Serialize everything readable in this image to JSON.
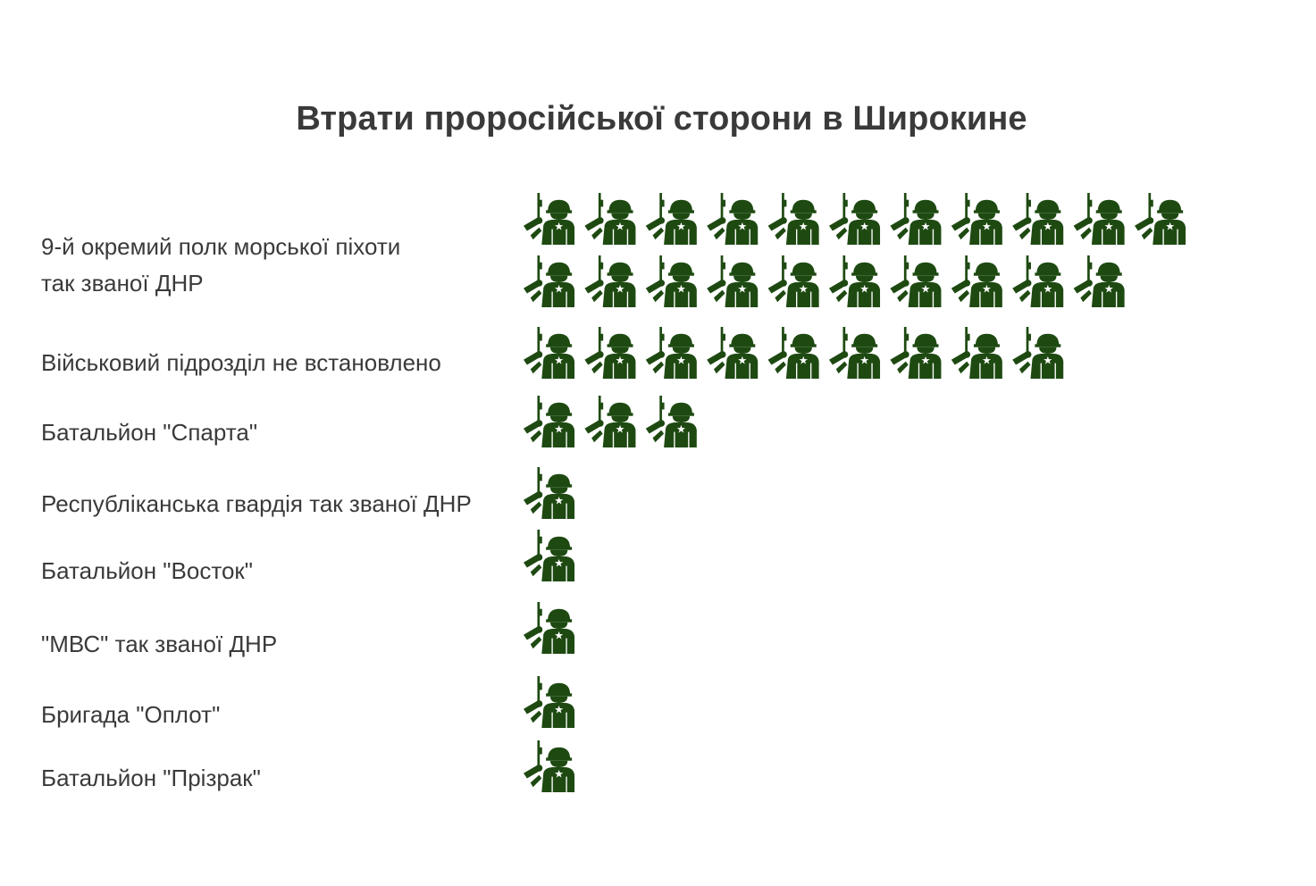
{
  "chart_data": {
    "type": "bar",
    "style": "pictogram",
    "icon": "soldier-icon",
    "icon_color": "#1e4a12",
    "text_color": "#3a3a3a",
    "background": "#ffffff",
    "title": "Втрати проросійської сторони в Широкине",
    "grid": false,
    "legend": "none",
    "categories": [
      [
        "9-й окремий полк морської піхоти",
        "так званої ДНР"
      ],
      [
        "Військовий підрозділ не встановлено"
      ],
      [
        "Батальйон \"Спарта\""
      ],
      [
        "Республіканська гвардія так званої ДНР"
      ],
      [
        "Батальйон \"Восток\""
      ],
      [
        "\"МВС\" так званої ДНР"
      ],
      [
        "Бригада \"Оплот\""
      ],
      [
        "Батальйон \"Прізрак\""
      ]
    ],
    "values": [
      21,
      9,
      3,
      1,
      1,
      1,
      1,
      1
    ]
  }
}
